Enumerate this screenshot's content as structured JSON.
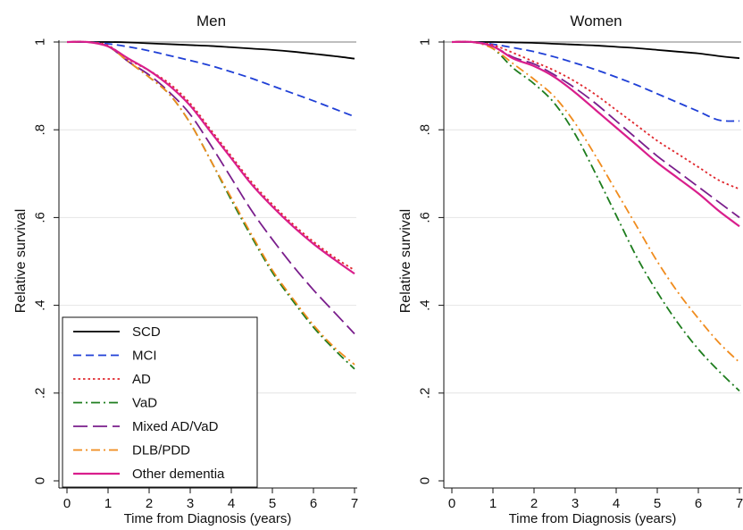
{
  "chart_data": [
    {
      "type": "line",
      "title": "Men",
      "xlabel": "Time from Diagnosis (years)",
      "ylabel": "Relative survival",
      "xlim": [
        0,
        7
      ],
      "ylim": [
        0,
        1
      ],
      "xticks": [
        "0",
        "1",
        "2",
        "3",
        "4",
        "5",
        "6",
        "7"
      ],
      "yticks": [
        "0",
        ".2",
        ".4",
        ".6",
        ".8",
        "1"
      ],
      "reference_line": 1,
      "legend_position": "bottom-left",
      "x": [
        0,
        0.5,
        1,
        1.5,
        2,
        2.5,
        3,
        3.5,
        4,
        4.5,
        5,
        5.5,
        6,
        6.5,
        7
      ],
      "series": [
        {
          "name": "SCD",
          "color": "#000000",
          "dash": "solid",
          "values": [
            1,
            1,
            1,
            0.999,
            0.997,
            0.995,
            0.993,
            0.991,
            0.988,
            0.985,
            0.982,
            0.978,
            0.973,
            0.968,
            0.962
          ]
        },
        {
          "name": "MCI",
          "color": "#1f3fd6",
          "dash": "dash",
          "values": [
            1,
            1,
            0.996,
            0.989,
            0.98,
            0.969,
            0.958,
            0.946,
            0.932,
            0.917,
            0.9,
            0.883,
            0.866,
            0.848,
            0.83
          ]
        },
        {
          "name": "AD",
          "color": "#e0282e",
          "dash": "dot",
          "values": [
            1,
            1,
            0.992,
            0.96,
            0.935,
            0.905,
            0.86,
            0.8,
            0.74,
            0.68,
            0.63,
            0.585,
            0.545,
            0.51,
            0.48
          ]
        },
        {
          "name": "VaD",
          "color": "#1e7d1e",
          "dash": "dashdot",
          "values": [
            1,
            1,
            0.99,
            0.955,
            0.92,
            0.88,
            0.815,
            0.73,
            0.64,
            0.555,
            0.475,
            0.41,
            0.35,
            0.3,
            0.255
          ]
        },
        {
          "name": "Mixed AD/VaD",
          "color": "#7a1e8c",
          "dash": "longdash",
          "values": [
            1,
            1,
            0.99,
            0.955,
            0.925,
            0.885,
            0.835,
            0.765,
            0.69,
            0.615,
            0.55,
            0.49,
            0.435,
            0.385,
            0.335
          ]
        },
        {
          "name": "DLB/PDD",
          "color": "#f08c1e",
          "dash": "dashdot",
          "values": [
            1,
            1,
            0.99,
            0.955,
            0.92,
            0.88,
            0.815,
            0.73,
            0.645,
            0.56,
            0.48,
            0.415,
            0.355,
            0.305,
            0.265
          ]
        },
        {
          "name": "Other dementia",
          "color": "#d91e8c",
          "dash": "solid",
          "values": [
            1,
            1,
            0.99,
            0.962,
            0.935,
            0.9,
            0.855,
            0.795,
            0.735,
            0.675,
            0.625,
            0.58,
            0.54,
            0.505,
            0.472
          ]
        }
      ]
    },
    {
      "type": "line",
      "title": "Women",
      "xlabel": "Time from Diagnosis (years)",
      "ylabel": "Relative survival",
      "xlim": [
        0,
        7
      ],
      "ylim": [
        0,
        1
      ],
      "xticks": [
        "0",
        "1",
        "2",
        "3",
        "4",
        "5",
        "6",
        "7"
      ],
      "yticks": [
        "0",
        ".2",
        ".4",
        ".6",
        ".8",
        "1"
      ],
      "reference_line": 1,
      "x": [
        0,
        0.5,
        1,
        1.5,
        2,
        2.5,
        3,
        3.5,
        4,
        4.5,
        5,
        5.5,
        6,
        6.5,
        7
      ],
      "series": [
        {
          "name": "SCD",
          "color": "#000000",
          "dash": "solid",
          "values": [
            1,
            1,
            1,
            0.999,
            0.998,
            0.996,
            0.994,
            0.992,
            0.989,
            0.986,
            0.982,
            0.978,
            0.974,
            0.968,
            0.963
          ]
        },
        {
          "name": "MCI",
          "color": "#1f3fd6",
          "dash": "dash",
          "values": [
            1,
            1,
            0.995,
            0.987,
            0.978,
            0.966,
            0.952,
            0.937,
            0.92,
            0.902,
            0.882,
            0.862,
            0.842,
            0.822,
            0.82
          ]
        },
        {
          "name": "AD",
          "color": "#e0282e",
          "dash": "dot",
          "values": [
            1,
            1,
            0.993,
            0.975,
            0.955,
            0.935,
            0.91,
            0.88,
            0.845,
            0.81,
            0.775,
            0.745,
            0.715,
            0.685,
            0.665
          ]
        },
        {
          "name": "VaD",
          "color": "#1e7d1e",
          "dash": "dashdot",
          "values": [
            1,
            1,
            0.985,
            0.94,
            0.905,
            0.86,
            0.79,
            0.7,
            0.605,
            0.51,
            0.43,
            0.36,
            0.3,
            0.25,
            0.205
          ]
        },
        {
          "name": "Mixed AD/VaD",
          "color": "#7a1e8c",
          "dash": "longdash",
          "values": [
            1,
            1,
            0.99,
            0.965,
            0.95,
            0.925,
            0.895,
            0.86,
            0.82,
            0.78,
            0.74,
            0.705,
            0.67,
            0.635,
            0.6
          ]
        },
        {
          "name": "DLB/PDD",
          "color": "#f08c1e",
          "dash": "dashdot",
          "values": [
            1,
            1,
            0.985,
            0.95,
            0.915,
            0.875,
            0.815,
            0.74,
            0.66,
            0.58,
            0.5,
            0.43,
            0.37,
            0.315,
            0.27
          ]
        },
        {
          "name": "Other dementia",
          "color": "#d91e8c",
          "dash": "solid",
          "values": [
            1,
            1,
            0.99,
            0.962,
            0.945,
            0.92,
            0.885,
            0.845,
            0.805,
            0.765,
            0.725,
            0.69,
            0.655,
            0.615,
            0.58
          ]
        }
      ]
    }
  ]
}
